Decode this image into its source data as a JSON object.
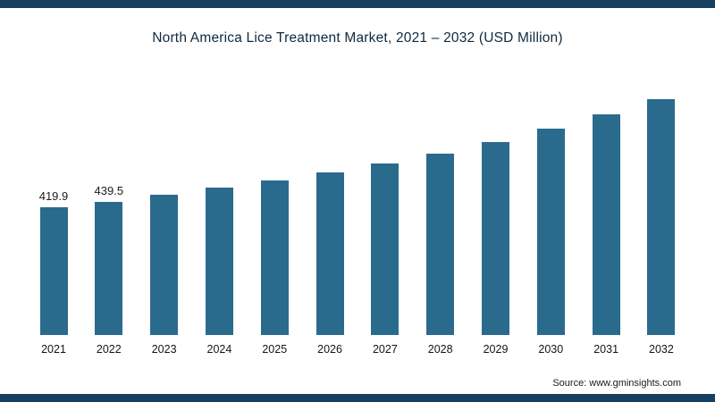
{
  "title": "North America Lice Treatment Market, 2021 – 2032 (USD Million)",
  "source": "Source: www.gminsights.com",
  "colors": {
    "bar": "#2a6b8d",
    "border_strip": "#17405e"
  },
  "chart_data": {
    "type": "bar",
    "title": "North America Lice Treatment Market, 2021 – 2032 (USD Million)",
    "categories": [
      "2021",
      "2022",
      "2023",
      "2024",
      "2025",
      "2026",
      "2027",
      "2028",
      "2029",
      "2030",
      "2031",
      "2032"
    ],
    "values": [
      419.9,
      439.5,
      461,
      484,
      509,
      535,
      565,
      598,
      636,
      678,
      725,
      775
    ],
    "data_labels": [
      "419.9",
      "439.5",
      "",
      "",
      "",
      "",
      "",
      "",
      "",
      "",
      "",
      ""
    ],
    "xlabel": "",
    "ylabel": "",
    "ylim": [
      0,
      800
    ],
    "grid": false,
    "legend": false,
    "axis_lines": false
  }
}
